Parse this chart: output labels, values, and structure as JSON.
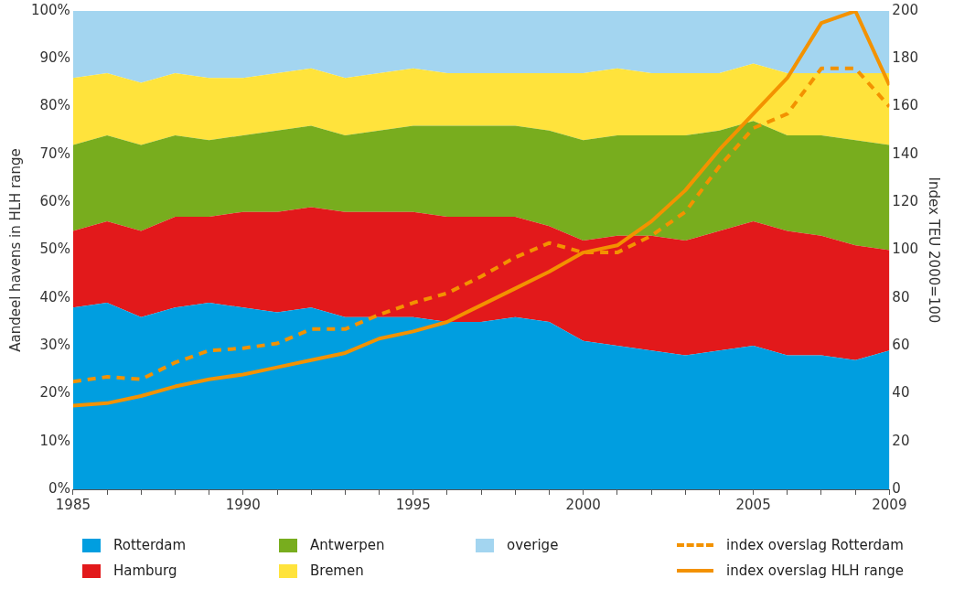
{
  "chart_data": {
    "type": "area",
    "stacked": true,
    "legend": "bottom",
    "grid": false,
    "marker": "none",
    "ylabel": "Aandeel havens in HLH range",
    "y2label": "Index TEU 2000=100",
    "x": [
      1985,
      1986,
      1987,
      1988,
      1989,
      1990,
      1991,
      1992,
      1993,
      1994,
      1995,
      1996,
      1997,
      1998,
      1999,
      2000,
      2001,
      2002,
      2003,
      2004,
      2005,
      2006,
      2007,
      2008,
      2009
    ],
    "xlim": [
      1985,
      2009
    ],
    "xticks": [
      1985,
      {
        "value": 1986,
        "label": null
      },
      {
        "value": 1987,
        "label": null
      },
      {
        "value": 1988,
        "label": null
      },
      {
        "value": 1989,
        "label": null
      },
      1990,
      {
        "value": 1991,
        "label": null
      },
      {
        "value": 1992,
        "label": null
      },
      {
        "value": 1993,
        "label": null
      },
      {
        "value": 1994,
        "label": null
      },
      1995,
      {
        "value": 1996,
        "label": null
      },
      {
        "value": 1997,
        "label": null
      },
      {
        "value": 1998,
        "label": null
      },
      {
        "value": 1999,
        "label": null
      },
      2000,
      {
        "value": 2001,
        "label": null
      },
      {
        "value": 2002,
        "label": null
      },
      {
        "value": 2003,
        "label": null
      },
      {
        "value": 2004,
        "label": null
      },
      2005,
      {
        "value": 2006,
        "label": null
      },
      {
        "value": 2007,
        "label": null
      },
      {
        "value": 2008,
        "label": null
      },
      2009
    ],
    "ylim": [
      0,
      100
    ],
    "yticks": [
      {
        "value": 0,
        "label": "0%"
      },
      {
        "value": 10,
        "label": "10%"
      },
      {
        "value": 20,
        "label": "20%"
      },
      {
        "value": 30,
        "label": "30%"
      },
      {
        "value": 40,
        "label": "40%"
      },
      {
        "value": 50,
        "label": "50%"
      },
      {
        "value": 60,
        "label": "60%"
      },
      {
        "value": 70,
        "label": "70%"
      },
      {
        "value": 80,
        "label": "80%"
      },
      {
        "value": 90,
        "label": "90%"
      },
      {
        "value": 100,
        "label": "100%"
      }
    ],
    "y2lim": [
      0,
      200
    ],
    "y2ticks": [
      0,
      20,
      40,
      60,
      80,
      100,
      120,
      140,
      160,
      180,
      200
    ],
    "series": [
      {
        "name": "Rotterdam",
        "type": "area",
        "color": "#009ee0",
        "values": [
          38,
          39,
          36,
          38,
          39,
          38,
          37,
          38,
          36,
          36,
          36,
          35,
          35,
          36,
          35,
          31,
          30,
          29,
          28,
          29,
          30,
          28,
          28,
          27,
          29
        ]
      },
      {
        "name": "Hamburg",
        "type": "area",
        "color": "#e2191b",
        "values": [
          16,
          17,
          18,
          19,
          18,
          20,
          21,
          21,
          22,
          22,
          22,
          22,
          22,
          21,
          20,
          21,
          23,
          24,
          24,
          25,
          26,
          26,
          25,
          24,
          21
        ]
      },
      {
        "name": "Antwerpen",
        "type": "area",
        "color": "#78ad1e",
        "values": [
          18,
          18,
          18,
          17,
          16,
          16,
          17,
          17,
          16,
          17,
          18,
          19,
          19,
          19,
          20,
          21,
          21,
          21,
          22,
          21,
          21,
          20,
          21,
          22,
          22
        ]
      },
      {
        "name": "Bremen",
        "type": "area",
        "color": "#ffe33c",
        "values": [
          14,
          13,
          13,
          13,
          13,
          12,
          12,
          12,
          12,
          12,
          12,
          11,
          11,
          11,
          12,
          14,
          14,
          13,
          13,
          12,
          12,
          13,
          13,
          14,
          15
        ]
      },
      {
        "name": "overige",
        "type": "area",
        "color": "#a3d5f0",
        "values": [
          14,
          13,
          15,
          13,
          14,
          14,
          13,
          12,
          14,
          13,
          12,
          13,
          13,
          13,
          13,
          13,
          12,
          13,
          13,
          13,
          11,
          13,
          13,
          13,
          13
        ]
      },
      {
        "name": "index overslag Rotterdam",
        "type": "line",
        "axis": "y2",
        "line_style": "dashed",
        "color": "#f39200",
        "values": [
          45,
          47,
          46,
          53,
          58,
          59,
          61,
          67,
          67,
          73,
          78,
          82,
          89,
          97,
          103,
          99,
          99,
          106,
          116,
          135,
          151,
          157,
          176,
          176,
          160
        ]
      },
      {
        "name": "index overslag HLH range",
        "type": "line",
        "axis": "y2",
        "line_style": "solid",
        "color": "#f39200",
        "values": [
          35,
          36,
          39,
          43,
          46,
          48,
          51,
          54,
          57,
          63,
          66,
          70,
          77,
          84,
          91,
          99,
          102,
          112,
          125,
          142,
          157,
          172,
          195,
          200,
          169
        ]
      }
    ]
  }
}
